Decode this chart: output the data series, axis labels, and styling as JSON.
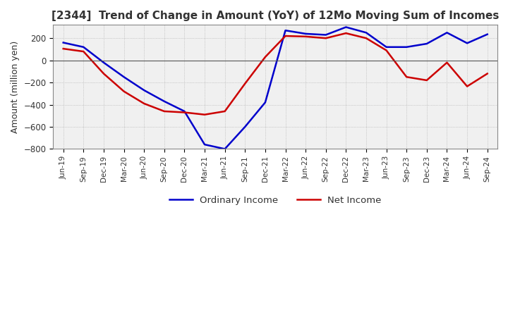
{
  "title": "[2344]  Trend of Change in Amount (YoY) of 12Mo Moving Sum of Incomes",
  "ylabel": "Amount (million yen)",
  "ylim": [
    -800,
    320
  ],
  "yticks": [
    -800,
    -600,
    -400,
    -200,
    0,
    200
  ],
  "background_color": "#ffffff",
  "grid_color": "#aaaaaa",
  "ordinary_income_color": "#0000cc",
  "net_income_color": "#cc0000",
  "x_labels": [
    "Jun-19",
    "Sep-19",
    "Dec-19",
    "Mar-20",
    "Jun-20",
    "Sep-20",
    "Dec-20",
    "Mar-21",
    "Jun-21",
    "Sep-21",
    "Dec-21",
    "Mar-22",
    "Jun-22",
    "Sep-22",
    "Dec-22",
    "Mar-23",
    "Jun-23",
    "Sep-23",
    "Dec-23",
    "Mar-24",
    "Jun-24",
    "Sep-24"
  ],
  "ordinary_income": [
    160,
    120,
    -20,
    -150,
    -270,
    -370,
    -460,
    -760,
    -800,
    -600,
    -380,
    270,
    240,
    230,
    300,
    250,
    120,
    120,
    150,
    250,
    155,
    235
  ],
  "net_income": [
    105,
    80,
    -120,
    -280,
    -390,
    -460,
    -470,
    -490,
    -460,
    -210,
    30,
    220,
    215,
    200,
    245,
    200,
    90,
    -150,
    -180,
    -20,
    -235,
    -120
  ]
}
